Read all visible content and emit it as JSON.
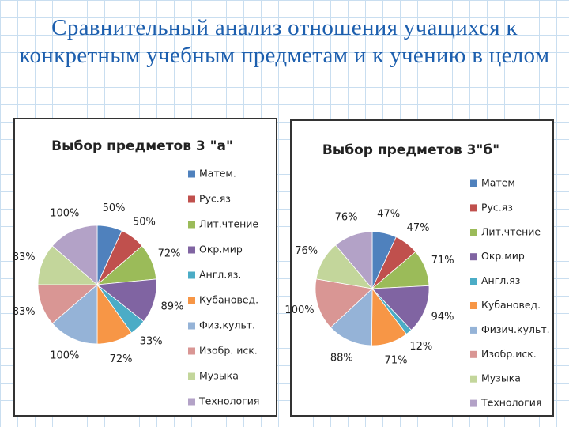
{
  "slide_title": "Сравнительный анализ отношения учащихся к конкретным учебным предметам и к учению в целом",
  "chart_data": [
    {
      "type": "pie",
      "title": "Выбор предметов 3  \"а\"",
      "categories": [
        "Матем.",
        "Рус.яз",
        "Лит.чтение",
        "Окр.мир",
        "Англ.яз.",
        "Кубановед.",
        "Физ.культ.",
        "Изобр. иск.",
        "Музыка",
        "Технология"
      ],
      "values": [
        50,
        50,
        72,
        89,
        33,
        72,
        100,
        83,
        83,
        100
      ],
      "value_labels": [
        "50%",
        "50%",
        "72%",
        "89%",
        "33%",
        "72%",
        "100%",
        "83%",
        "83%",
        "100%"
      ],
      "colors": [
        "#4f81bd",
        "#c0504d",
        "#9bbb59",
        "#8064a2",
        "#4bacc6",
        "#f79646",
        "#95b3d7",
        "#d99694",
        "#c3d69b",
        "#b3a2c7"
      ]
    },
    {
      "type": "pie",
      "title": "Выбор предметов 3\"б\"",
      "categories": [
        "Матем",
        "Рус.яз",
        "Лит.чтение",
        "Окр.мир",
        "Англ.яз",
        "Кубановед.",
        "Физич.культ.",
        "Изобр.иск.",
        "Музыка",
        "Технология"
      ],
      "values": [
        47,
        47,
        71,
        94,
        12,
        71,
        88,
        100,
        76,
        76
      ],
      "value_labels": [
        "47%",
        "47%",
        "71%",
        "94%",
        "12%",
        "71%",
        "88%",
        "100%",
        "76%",
        "76%"
      ],
      "colors": [
        "#4f81bd",
        "#c0504d",
        "#9bbb59",
        "#8064a2",
        "#4bacc6",
        "#f79646",
        "#95b3d7",
        "#d99694",
        "#c3d69b",
        "#b3a2c7"
      ]
    }
  ]
}
